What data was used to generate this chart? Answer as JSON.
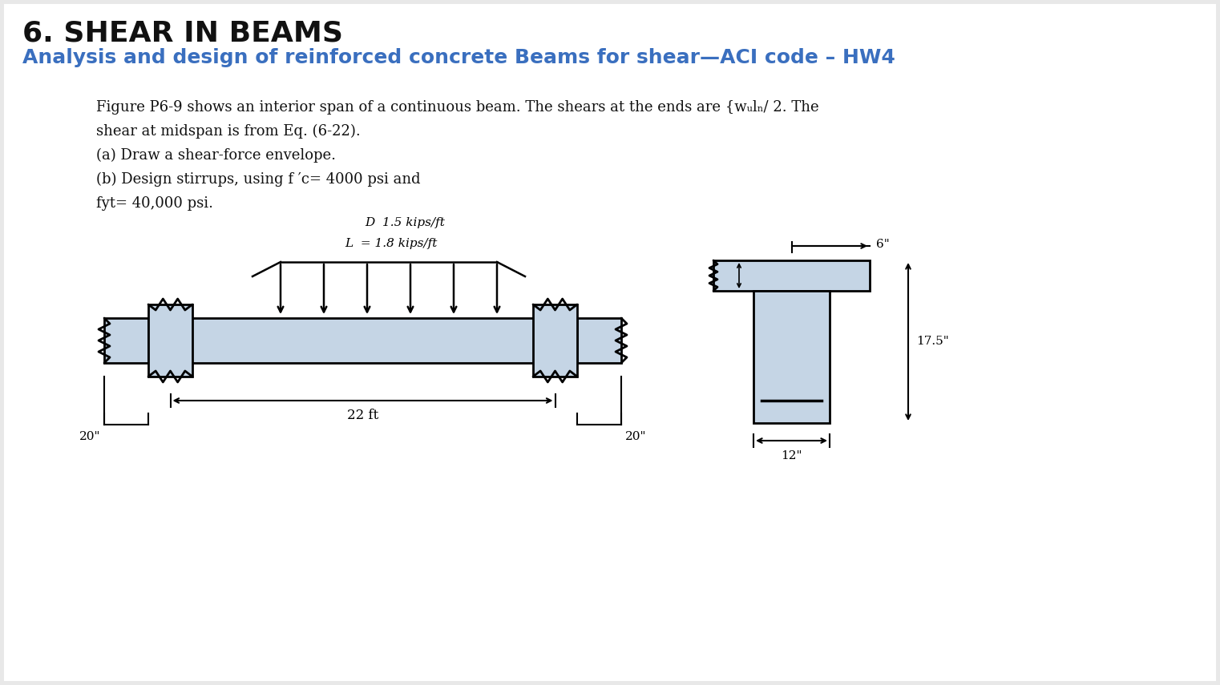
{
  "title1": "6. SHEAR IN BEAMS",
  "title2": "Analysis and design of reinforced concrete Beams for shear—ACI code – HW4",
  "bg_color": "#e8e8e8",
  "main_bg": "#ffffff",
  "body_text_line1": "Figure P6-9 shows an interior span of a continuous beam. The shears at the ends are {wᵤlₙ/ 2. The",
  "body_text_line2": "shear at midspan is from Eq. (6-22).",
  "body_text_line3": "(a) Draw a shear-force envelope.",
  "body_text_line4": "(b) Design stirrups, using f ′c= 4000 psi and",
  "body_text_line5": "fyt= 40,000 psi.",
  "load_label_D": "D  1.5 kips/ft",
  "load_label_L": "L  = 1.8 kips/ft",
  "span_label": "22 ft",
  "left_col_label": "20\"",
  "right_col_label": "20\"",
  "dim_6in": "6\"",
  "dim_17_5in": "17.5\"",
  "dim_12in": "12\"",
  "beam_fill_color": "#c5d5e5",
  "beam_line_color": "#000000",
  "title1_color": "#111111",
  "title2_color": "#3a6fbf"
}
